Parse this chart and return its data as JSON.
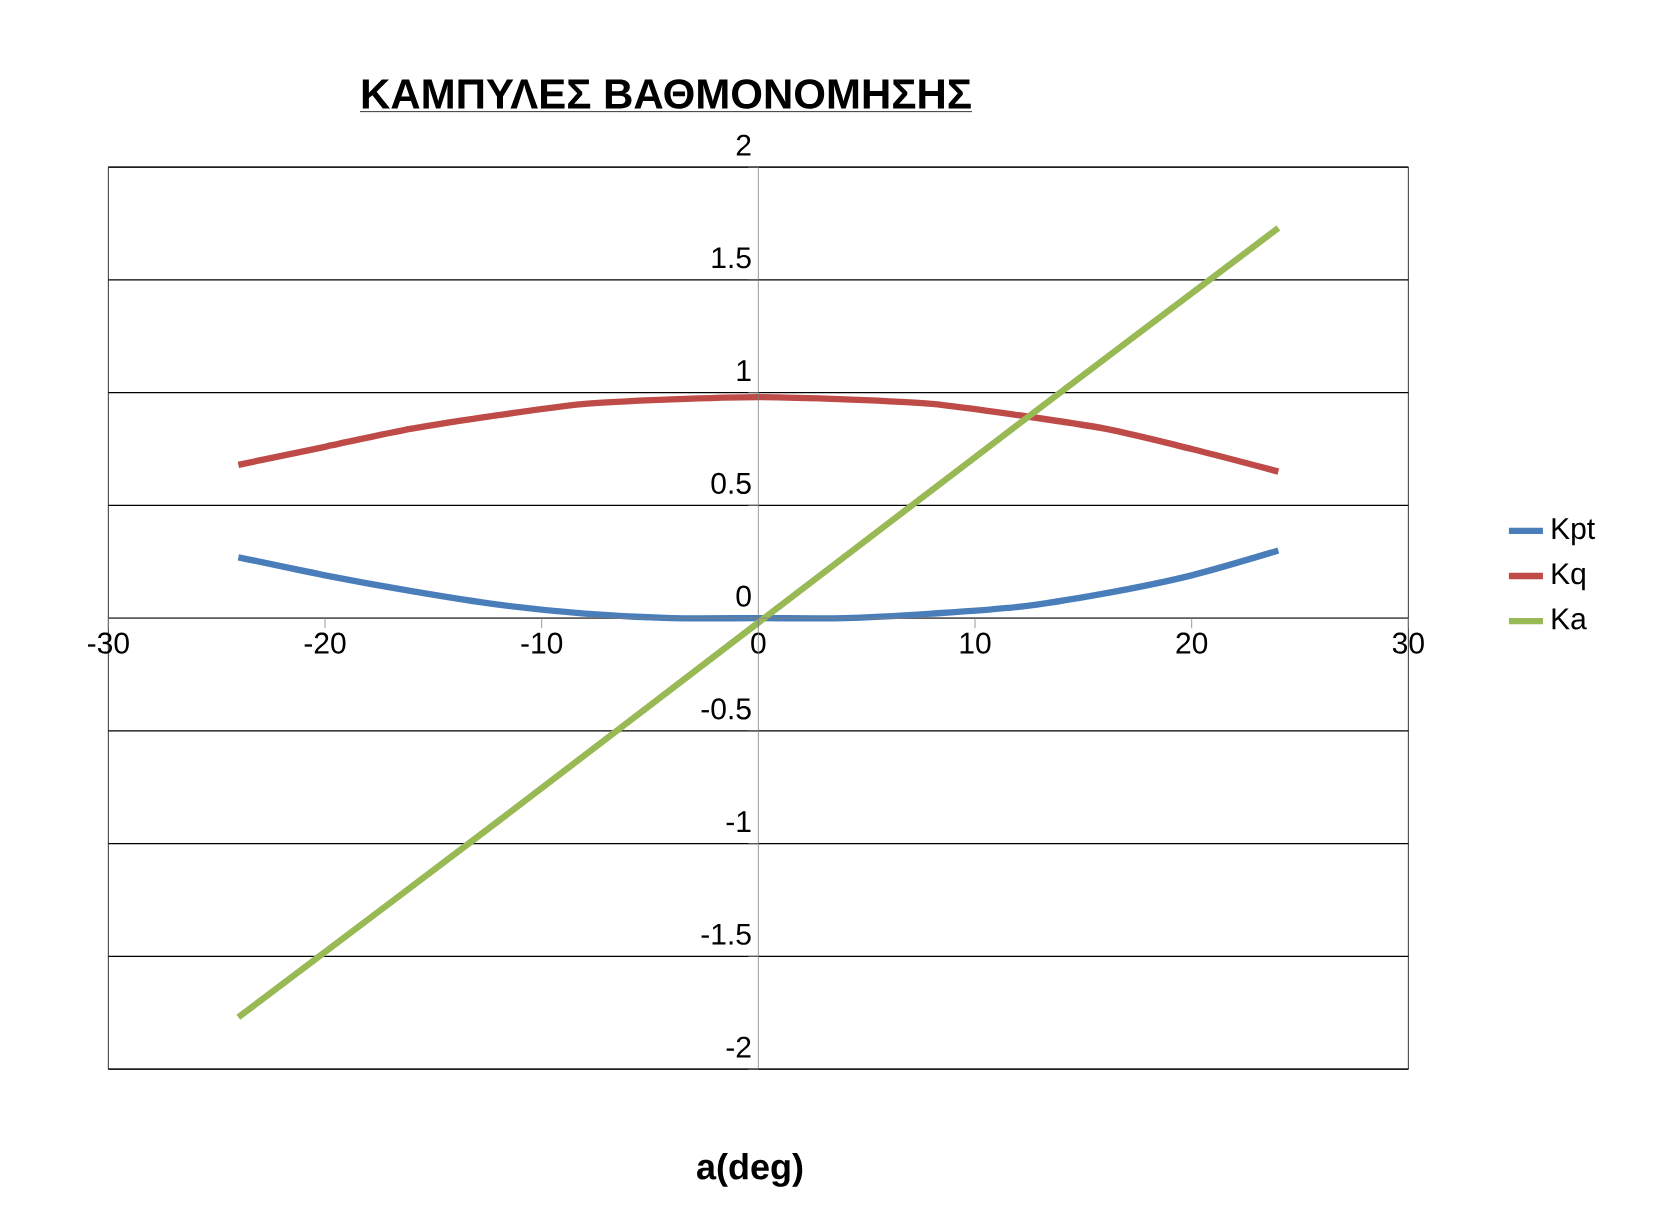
{
  "chart_data": {
    "type": "line",
    "title": "ΚΑΜΠΥΛΕΣ ΒΑΘΜΟΝΟΜΗΣΗΣ",
    "xlabel": "a(deg)",
    "xlim": [
      -30,
      30
    ],
    "xticks": [
      -30,
      -20,
      -10,
      0,
      10,
      20,
      30
    ],
    "ylim": [
      -2,
      2
    ],
    "yticks": [
      -2,
      -1.5,
      -1,
      -0.5,
      0,
      0.5,
      1,
      1.5,
      2
    ],
    "grid": "y",
    "legend": "right",
    "marker": "none",
    "line_style": "solid",
    "series": [
      {
        "name": "Kpt",
        "color": "#4a7ebb",
        "x": [
          -24,
          -20,
          -16,
          -12,
          -8,
          -4,
          0,
          4,
          8,
          12,
          16,
          20,
          24
        ],
        "values": [
          0.27,
          0.19,
          0.12,
          0.06,
          0.02,
          0.0,
          0.0,
          0.0,
          0.02,
          0.05,
          0.11,
          0.19,
          0.3
        ]
      },
      {
        "name": "Kq",
        "color": "#be4b48",
        "x": [
          -24,
          -20,
          -16,
          -12,
          -8,
          -4,
          0,
          4,
          8,
          12,
          16,
          20,
          24
        ],
        "values": [
          0.68,
          0.76,
          0.84,
          0.9,
          0.95,
          0.97,
          0.98,
          0.97,
          0.95,
          0.9,
          0.84,
          0.75,
          0.65
        ]
      },
      {
        "name": "Ka",
        "color": "#98b954",
        "x": [
          -24,
          -12,
          0,
          12,
          24
        ],
        "values": [
          -1.77,
          -0.9,
          -0.02,
          0.86,
          1.73
        ]
      }
    ]
  }
}
